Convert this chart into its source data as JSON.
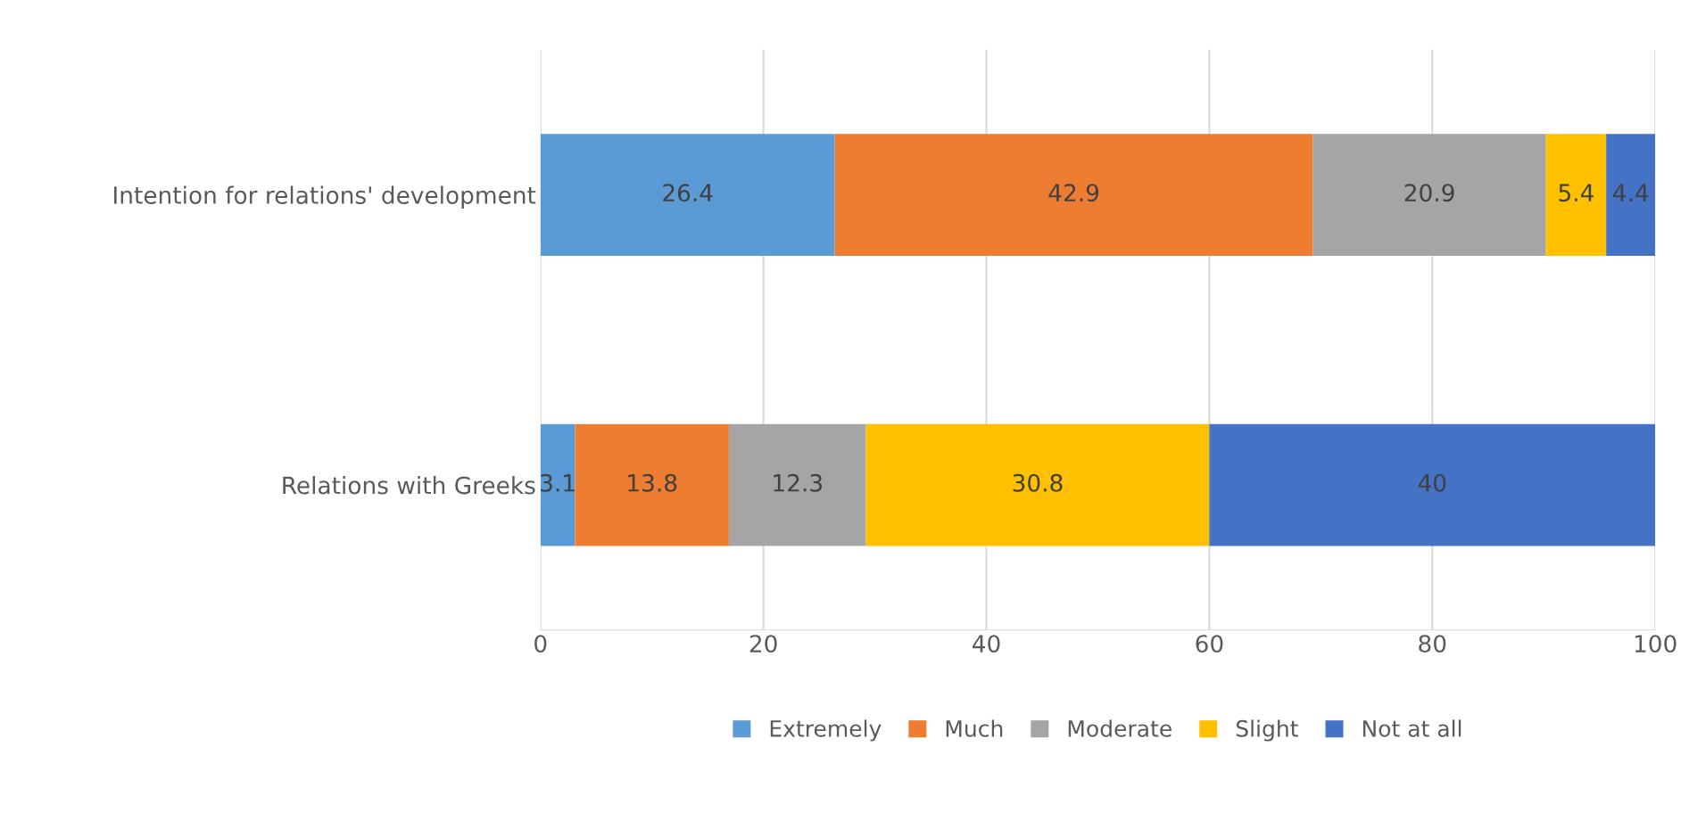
{
  "chart_data": {
    "type": "bar",
    "orientation": "horizontal",
    "stacked": true,
    "categories": [
      "Intention for relations' development",
      "Relations with Greeks"
    ],
    "series": [
      {
        "name": "Extremely",
        "color": "#5b9bd5",
        "values": [
          26.4,
          3.1
        ]
      },
      {
        "name": "Much",
        "color": "#ed7d31",
        "values": [
          42.9,
          13.8
        ]
      },
      {
        "name": "Moderate",
        "color": "#a5a5a5",
        "values": [
          20.9,
          12.3
        ]
      },
      {
        "name": "Slight",
        "color": "#ffc000",
        "values": [
          5.4,
          30.8
        ]
      },
      {
        "name": "Not at all",
        "color": "#4472c4",
        "values": [
          4.4,
          40
        ]
      }
    ],
    "xlim": [
      0,
      100
    ],
    "xticks": [
      0,
      20,
      40,
      60,
      80,
      100
    ],
    "grid": "x",
    "legend": "bottom",
    "data_labels": true
  }
}
